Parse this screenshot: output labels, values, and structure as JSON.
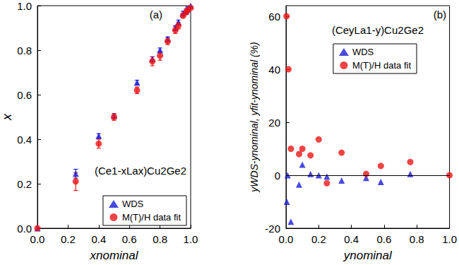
{
  "chart_data": [
    {
      "type": "scatter",
      "panel_label": "(a)",
      "annotation": "(Ce1-xLax)Cu2Ge2",
      "xlabel": "xnominal",
      "ylabel": "x",
      "xlim": [
        0,
        1
      ],
      "ylim": [
        0,
        1
      ],
      "xticks": [
        {
          "value": 0,
          "label": "0.0"
        },
        0.2,
        0.4,
        0.6,
        0.8,
        {
          "value": 1,
          "label": "1.0"
        }
      ],
      "yticks": [
        {
          "value": 0,
          "label": "0.0"
        },
        0.2,
        0.4,
        0.6,
        0.8,
        {
          "value": 1,
          "label": "1.0"
        }
      ],
      "grid": false,
      "legend": "lower right",
      "series": [
        {
          "name": "WDS",
          "color": "#1c1cd8",
          "marker": "triangle",
          "x": [
            0,
            0.25,
            0.4,
            0.5,
            0.65,
            0.75,
            0.8,
            0.85,
            0.9,
            0.92,
            0.95,
            0.97,
            0.98,
            1.0
          ],
          "values": [
            0,
            0.245,
            0.415,
            0.505,
            0.655,
            0.76,
            0.8,
            0.85,
            0.9,
            0.925,
            0.965,
            0.975,
            0.985,
            1.0
          ],
          "errors": [
            0,
            0.02,
            0.01,
            0.01,
            0.01,
            0.01,
            0.01,
            0.01,
            0.01,
            0.01,
            0.01,
            0.01,
            0.01,
            0.01
          ]
        },
        {
          "name": "M(T)/H data fit",
          "color": "#ee1515",
          "marker": "circle",
          "x": [
            0,
            0.25,
            0.4,
            0.5,
            0.65,
            0.75,
            0.8,
            0.85,
            0.9,
            0.92,
            0.95,
            0.97,
            0.98,
            1.0
          ],
          "values": [
            0,
            0.21,
            0.38,
            0.5,
            0.62,
            0.75,
            0.775,
            0.84,
            0.89,
            0.91,
            0.955,
            0.97,
            0.98,
            0.99
          ],
          "errors": [
            0,
            0.04,
            0.02,
            0.015,
            0.015,
            0.02,
            0.02,
            0.015,
            0.015,
            0.015,
            0.01,
            0.01,
            0.01,
            0.01
          ]
        }
      ]
    },
    {
      "type": "scatter",
      "panel_label": "(b)",
      "annotation": "(CeyLa1-y)Cu2Ge2",
      "xlabel": "ynominal",
      "ylabel": "yWDS-ynominal, yfit-ynominal (%)",
      "xlim": [
        0,
        1
      ],
      "ylim": [
        -20,
        64
      ],
      "xticks": [
        {
          "value": 0,
          "label": "0.0"
        },
        0.2,
        0.4,
        0.6,
        0.8,
        {
          "value": 1,
          "label": "1.0"
        }
      ],
      "yticks": [
        -20,
        0,
        20,
        40,
        60
      ],
      "grid": false,
      "legend": "upper right",
      "hline": 0,
      "series": [
        {
          "name": "WDS",
          "color": "#1c1cd8",
          "marker": "triangle",
          "x": [
            0.005,
            0.01,
            0.03,
            0.08,
            0.1,
            0.15,
            0.2,
            0.25,
            0.34,
            0.49,
            0.58,
            0.76
          ],
          "values": [
            -10,
            0,
            -17.5,
            -3.5,
            4,
            0.5,
            0,
            -0.5,
            -2,
            -1,
            -2.5,
            0.5
          ]
        },
        {
          "name": "M(T)/H data fit",
          "color": "#ee1515",
          "marker": "circle",
          "x": [
            0.003,
            0.015,
            0.03,
            0.08,
            0.1,
            0.15,
            0.2,
            0.25,
            0.34,
            0.49,
            0.58,
            0.76,
            1.0
          ],
          "values": [
            60,
            40,
            10,
            8,
            10,
            7.5,
            13.5,
            -3,
            8.5,
            0.5,
            3.5,
            5,
            0
          ]
        }
      ]
    }
  ]
}
